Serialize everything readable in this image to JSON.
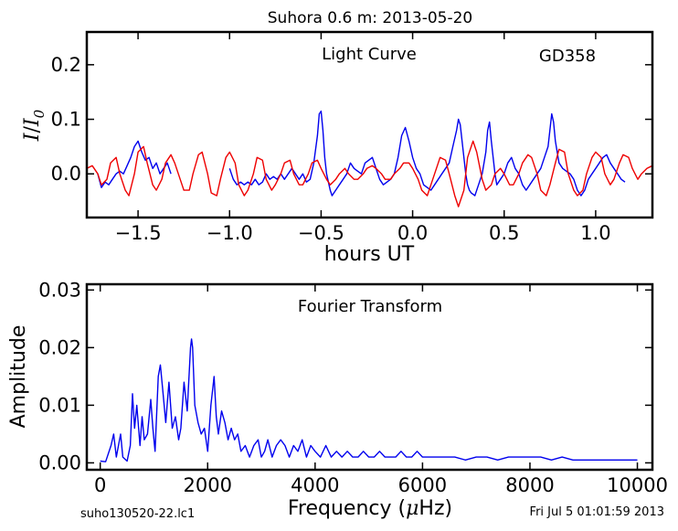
{
  "header": {
    "title": "Suhora 0.6 m:  2013-05-20"
  },
  "footer": {
    "left": "suho130520-22.lc1",
    "right": "Fri Jul  5 01:01:59 2013"
  },
  "chart_data": [
    {
      "type": "line",
      "panel": "light-curve",
      "title": "Light Curve",
      "annotation": "GD358",
      "xlabel": "hours UT",
      "ylabel_main": "I",
      "ylabel_sub": "0",
      "xlim": [
        -1.78,
        1.31
      ],
      "ylim": [
        -0.08,
        0.26
      ],
      "xticks": [
        -1.5,
        -1.0,
        -0.5,
        0.0,
        0.5,
        1.0
      ],
      "xtick_labels": [
        "−1.5",
        "−1.0",
        "−0.5",
        "0.0",
        "0.5",
        "1.0"
      ],
      "yticks": [
        0.0,
        0.1,
        0.2
      ],
      "ytick_labels": [
        "0.0",
        "0.1",
        "0.2"
      ],
      "colors": {
        "data": "#0000ee",
        "model": "#ee0000"
      },
      "series": [
        {
          "kind": "data",
          "segments": [
            {
              "x": [
                -1.72,
                -1.7,
                -1.68,
                -1.66,
                -1.64,
                -1.62,
                -1.6,
                -1.58,
                -1.56,
                -1.54,
                -1.52,
                -1.5,
                -1.48,
                -1.46,
                -1.44,
                -1.42,
                -1.4,
                -1.38,
                -1.36,
                -1.34,
                -1.32
              ],
              "y": [
                0.0,
                -0.025,
                -0.015,
                -0.02,
                -0.01,
                0.0,
                0.005,
                0.0,
                0.015,
                0.03,
                0.05,
                0.06,
                0.04,
                0.025,
                0.03,
                0.01,
                0.02,
                0.0,
                0.01,
                0.02,
                0.0
              ]
            },
            {
              "x": [
                -1.0,
                -0.98,
                -0.96,
                -0.94,
                -0.92,
                -0.9,
                -0.88,
                -0.86,
                -0.84,
                -0.82,
                -0.8,
                -0.78,
                -0.76,
                -0.74,
                -0.72,
                -0.7,
                -0.68,
                -0.66,
                -0.64,
                -0.62,
                -0.6,
                -0.58,
                -0.56,
                -0.54,
                -0.52,
                -0.51,
                -0.5,
                -0.49,
                -0.48,
                -0.47,
                -0.46,
                -0.45,
                -0.44,
                -0.42,
                -0.4,
                -0.38,
                -0.36,
                -0.34,
                -0.32,
                -0.3,
                -0.28,
                -0.26,
                -0.24,
                -0.22,
                -0.2,
                -0.18,
                -0.16,
                -0.14,
                -0.12,
                -0.1,
                -0.08,
                -0.06,
                -0.04,
                -0.02,
                0.0,
                0.02,
                0.04,
                0.06,
                0.08,
                0.1,
                0.12,
                0.14,
                0.16,
                0.18,
                0.2,
                0.22,
                0.24,
                0.25,
                0.26,
                0.27,
                0.28,
                0.29,
                0.3,
                0.31,
                0.32,
                0.34,
                0.36,
                0.38,
                0.4,
                0.41,
                0.42,
                0.43,
                0.44,
                0.45,
                0.46,
                0.48,
                0.5,
                0.52,
                0.54,
                0.56,
                0.58,
                0.6,
                0.62,
                0.64,
                0.66,
                0.68,
                0.7,
                0.72,
                0.74,
                0.75,
                0.76,
                0.77,
                0.78,
                0.79,
                0.8,
                0.82,
                0.84,
                0.86,
                0.88,
                0.9,
                0.92,
                0.94,
                0.96,
                0.98,
                1.0,
                1.02,
                1.04,
                1.06,
                1.08,
                1.1,
                1.12,
                1.14,
                1.16
              ],
              "y": [
                0.01,
                -0.01,
                -0.02,
                -0.015,
                -0.02,
                -0.015,
                -0.02,
                -0.01,
                -0.02,
                -0.015,
                0.0,
                -0.01,
                -0.005,
                -0.01,
                0.0,
                -0.01,
                0.0,
                0.01,
                0.0,
                -0.01,
                0.0,
                -0.015,
                -0.01,
                0.02,
                0.07,
                0.11,
                0.115,
                0.08,
                0.03,
                0.0,
                -0.015,
                -0.03,
                -0.04,
                -0.03,
                -0.02,
                -0.01,
                0.0,
                0.02,
                0.01,
                0.005,
                0.0,
                0.02,
                0.025,
                0.03,
                0.01,
                -0.01,
                -0.02,
                -0.015,
                -0.01,
                0.0,
                0.03,
                0.07,
                0.085,
                0.06,
                0.03,
                0.01,
                0.0,
                -0.02,
                -0.025,
                -0.03,
                -0.02,
                -0.01,
                0.0,
                0.01,
                0.02,
                0.05,
                0.08,
                0.1,
                0.09,
                0.06,
                0.03,
                0.0,
                -0.02,
                -0.03,
                -0.035,
                -0.04,
                -0.02,
                0.0,
                0.04,
                0.08,
                0.095,
                0.06,
                0.03,
                0.0,
                -0.02,
                -0.01,
                0.0,
                0.02,
                0.03,
                0.01,
                0.0,
                -0.02,
                -0.03,
                -0.02,
                -0.01,
                0.0,
                0.01,
                0.03,
                0.05,
                0.08,
                0.11,
                0.095,
                0.06,
                0.04,
                0.02,
                0.01,
                0.005,
                0.0,
                -0.01,
                -0.03,
                -0.04,
                -0.03,
                -0.01,
                0.0,
                0.01,
                0.02,
                0.03,
                0.035,
                0.02,
                0.01,
                0.0,
                -0.01,
                -0.015
              ]
            }
          ]
        },
        {
          "kind": "model",
          "x": [
            -1.78,
            -1.75,
            -1.72,
            -1.7,
            -1.67,
            -1.65,
            -1.62,
            -1.6,
            -1.57,
            -1.55,
            -1.52,
            -1.5,
            -1.47,
            -1.45,
            -1.42,
            -1.4,
            -1.37,
            -1.35,
            -1.32,
            -1.3,
            -1.27,
            -1.25,
            -1.22,
            -1.2,
            -1.17,
            -1.15,
            -1.12,
            -1.1,
            -1.07,
            -1.05,
            -1.02,
            -1.0,
            -0.97,
            -0.95,
            -0.92,
            -0.9,
            -0.87,
            -0.85,
            -0.82,
            -0.8,
            -0.77,
            -0.75,
            -0.72,
            -0.7,
            -0.67,
            -0.65,
            -0.62,
            -0.6,
            -0.57,
            -0.55,
            -0.52,
            -0.5,
            -0.47,
            -0.45,
            -0.42,
            -0.4,
            -0.37,
            -0.35,
            -0.32,
            -0.3,
            -0.27,
            -0.25,
            -0.22,
            -0.2,
            -0.17,
            -0.15,
            -0.12,
            -0.1,
            -0.07,
            -0.05,
            -0.02,
            0.0,
            0.03,
            0.05,
            0.08,
            0.1,
            0.13,
            0.15,
            0.18,
            0.2,
            0.23,
            0.25,
            0.28,
            0.3,
            0.33,
            0.35,
            0.38,
            0.4,
            0.43,
            0.45,
            0.48,
            0.5,
            0.53,
            0.55,
            0.58,
            0.6,
            0.63,
            0.65,
            0.68,
            0.7,
            0.73,
            0.75,
            0.78,
            0.8,
            0.83,
            0.85,
            0.88,
            0.9,
            0.93,
            0.95,
            0.98,
            1.0,
            1.03,
            1.05,
            1.08,
            1.1,
            1.13,
            1.15,
            1.18,
            1.2,
            1.23,
            1.25,
            1.28,
            1.31
          ],
          "y": [
            0.01,
            0.015,
            0.0,
            -0.02,
            -0.01,
            0.02,
            0.03,
            0.0,
            -0.03,
            -0.04,
            0.0,
            0.04,
            0.05,
            0.02,
            -0.02,
            -0.03,
            -0.01,
            0.02,
            0.035,
            0.02,
            -0.01,
            -0.03,
            -0.03,
            0.0,
            0.035,
            0.04,
            0.0,
            -0.035,
            -0.04,
            -0.01,
            0.03,
            0.04,
            0.02,
            -0.02,
            -0.04,
            -0.03,
            0.0,
            0.03,
            0.025,
            -0.01,
            -0.03,
            -0.02,
            0.0,
            0.02,
            0.025,
            0.0,
            -0.02,
            -0.02,
            0.0,
            0.02,
            0.025,
            0.01,
            -0.01,
            -0.02,
            -0.01,
            0.0,
            0.01,
            0.0,
            -0.01,
            -0.01,
            0.0,
            0.01,
            0.015,
            0.01,
            0.0,
            -0.01,
            -0.01,
            0.0,
            0.01,
            0.02,
            0.02,
            0.01,
            -0.01,
            -0.03,
            -0.04,
            -0.02,
            0.01,
            0.03,
            0.025,
            0.0,
            -0.04,
            -0.06,
            -0.03,
            0.03,
            0.06,
            0.04,
            -0.01,
            -0.03,
            -0.02,
            0.0,
            0.01,
            0.0,
            -0.02,
            -0.02,
            0.0,
            0.02,
            0.035,
            0.03,
            0.0,
            -0.03,
            -0.04,
            -0.02,
            0.02,
            0.045,
            0.04,
            0.0,
            -0.03,
            -0.04,
            -0.03,
            0.0,
            0.03,
            0.04,
            0.03,
            0.0,
            -0.02,
            -0.01,
            0.02,
            0.035,
            0.03,
            0.01,
            -0.01,
            0.0,
            0.01,
            0.015
          ]
        }
      ]
    },
    {
      "type": "line",
      "panel": "fourier",
      "title": "Fourier Transform",
      "xlabel_prefix": "Frequency (",
      "xlabel_mu": "μ",
      "xlabel_suffix": "Hz)",
      "ylabel": "Amplitude",
      "xlim": [
        -250,
        10280
      ],
      "ylim": [
        -0.0012,
        0.031
      ],
      "xticks": [
        0,
        2000,
        4000,
        6000,
        8000,
        10000
      ],
      "xtick_labels": [
        "0",
        "2000",
        "4000",
        "6000",
        "8000",
        "10000"
      ],
      "yticks": [
        0.0,
        0.01,
        0.02,
        0.03
      ],
      "ytick_labels": [
        "0.00",
        "0.01",
        "0.02",
        "0.03"
      ],
      "colors": {
        "line": "#0000ee"
      },
      "series": [
        {
          "x": [
            0,
            100,
            200,
            250,
            300,
            380,
            420,
            500,
            560,
            600,
            640,
            680,
            740,
            780,
            820,
            880,
            940,
            980,
            1020,
            1080,
            1120,
            1160,
            1220,
            1280,
            1340,
            1400,
            1460,
            1500,
            1560,
            1620,
            1680,
            1700,
            1720,
            1760,
            1820,
            1880,
            1940,
            2000,
            2060,
            2120,
            2160,
            2200,
            2260,
            2320,
            2380,
            2440,
            2500,
            2560,
            2620,
            2700,
            2780,
            2860,
            2940,
            3000,
            3060,
            3120,
            3200,
            3280,
            3360,
            3440,
            3520,
            3600,
            3680,
            3760,
            3840,
            3920,
            4000,
            4100,
            4200,
            4300,
            4400,
            4500,
            4600,
            4700,
            4800,
            4900,
            5000,
            5100,
            5200,
            5300,
            5400,
            5500,
            5600,
            5700,
            5800,
            5900,
            6000,
            6200,
            6400,
            6600,
            6800,
            7000,
            7200,
            7400,
            7600,
            7800,
            8000,
            8200,
            8400,
            8600,
            8800,
            9000,
            9200,
            9400,
            9600,
            9800,
            10000
          ],
          "y": [
            0.0003,
            0.0002,
            0.003,
            0.005,
            0.001,
            0.005,
            0.001,
            0.0003,
            0.003,
            0.012,
            0.006,
            0.01,
            0.003,
            0.008,
            0.004,
            0.005,
            0.011,
            0.006,
            0.002,
            0.015,
            0.017,
            0.013,
            0.007,
            0.014,
            0.006,
            0.008,
            0.004,
            0.006,
            0.014,
            0.009,
            0.02,
            0.0215,
            0.02,
            0.01,
            0.007,
            0.005,
            0.006,
            0.002,
            0.01,
            0.015,
            0.008,
            0.005,
            0.009,
            0.007,
            0.004,
            0.006,
            0.004,
            0.005,
            0.002,
            0.003,
            0.001,
            0.003,
            0.004,
            0.001,
            0.002,
            0.004,
            0.001,
            0.003,
            0.004,
            0.003,
            0.001,
            0.003,
            0.002,
            0.004,
            0.001,
            0.003,
            0.002,
            0.001,
            0.003,
            0.001,
            0.002,
            0.001,
            0.002,
            0.001,
            0.001,
            0.002,
            0.001,
            0.001,
            0.002,
            0.001,
            0.001,
            0.001,
            0.002,
            0.001,
            0.001,
            0.002,
            0.001,
            0.001,
            0.001,
            0.001,
            0.0005,
            0.001,
            0.001,
            0.0005,
            0.001,
            0.001,
            0.001,
            0.001,
            0.0005,
            0.001,
            0.0005,
            0.0005,
            0.0005,
            0.0005,
            0.0005,
            0.0005,
            0.0005
          ]
        }
      ]
    }
  ]
}
